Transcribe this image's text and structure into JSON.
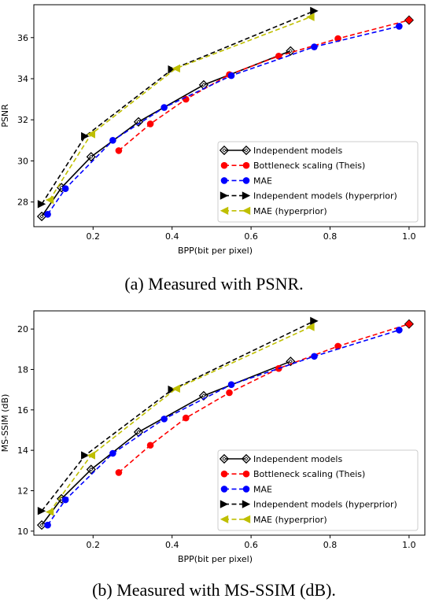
{
  "chart_data": [
    {
      "type": "line",
      "xlabel": "BPP(bit per pixel)",
      "ylabel": "PSNR",
      "xlim": [
        0.05,
        1.04
      ],
      "ylim": [
        26.8,
        37.6
      ],
      "xticks": [
        0.2,
        0.4,
        0.6,
        0.8,
        1.0
      ],
      "xtick_labels": [
        "0.2",
        "0.4",
        "0.6",
        "0.8",
        "1.0"
      ],
      "yticks": [
        28,
        30,
        32,
        34,
        36
      ],
      "ytick_labels": [
        "28",
        "30",
        "32",
        "34",
        "36"
      ],
      "grid": false,
      "legend_position": "lower-right",
      "caption": "(a) Measured with PSNR.",
      "series": [
        {
          "name": "Independent models",
          "color": "#000000",
          "dash": "solid",
          "marker": "diamond",
          "x": [
            0.07,
            0.12,
            0.195,
            0.315,
            0.48,
            0.7
          ],
          "y": [
            27.3,
            28.7,
            30.2,
            31.9,
            33.7,
            35.35
          ]
        },
        {
          "name": "Bottleneck scaling (Theis)",
          "color": "#ff0000",
          "dash": "dashed",
          "marker": "circle",
          "x": [
            0.265,
            0.345,
            0.435,
            0.545,
            0.67,
            0.82,
            1.0
          ],
          "y": [
            30.5,
            31.8,
            33.0,
            34.2,
            35.1,
            35.95,
            36.85
          ]
        },
        {
          "name": "MAE",
          "color": "#0000ff",
          "dash": "dashed",
          "marker": "circle",
          "x": [
            0.085,
            0.13,
            0.25,
            0.38,
            0.55,
            0.76,
            0.975
          ],
          "y": [
            27.4,
            28.65,
            31.0,
            32.6,
            34.15,
            35.55,
            36.55
          ]
        },
        {
          "name": "Independent models (hyperprior)",
          "color": "#000000",
          "dash": "dashed",
          "marker": "triangle-right",
          "x": [
            0.07,
            0.18,
            0.4,
            0.76
          ],
          "y": [
            27.9,
            31.2,
            34.45,
            37.3
          ]
        },
        {
          "name": "MAE (hyperprior)",
          "color": "#bfbf00",
          "dash": "dashed",
          "marker": "triangle-left",
          "x": [
            0.09,
            0.195,
            0.41,
            0.75
          ],
          "y": [
            28.1,
            31.3,
            34.5,
            37.0
          ]
        }
      ]
    },
    {
      "type": "line",
      "xlabel": "BPP(bit per pixel)",
      "ylabel": "MS-SSIM (dB)",
      "xlim": [
        0.05,
        1.04
      ],
      "ylim": [
        9.8,
        20.9
      ],
      "xticks": [
        0.2,
        0.4,
        0.6,
        0.8,
        1.0
      ],
      "xtick_labels": [
        "0.2",
        "0.4",
        "0.6",
        "0.8",
        "1.0"
      ],
      "yticks": [
        10,
        12,
        14,
        16,
        18,
        20
      ],
      "ytick_labels": [
        "10",
        "12",
        "14",
        "16",
        "18",
        "20"
      ],
      "grid": false,
      "legend_position": "lower-right",
      "caption": "(b) Measured with MS-SSIM (dB).",
      "series": [
        {
          "name": "Independent models",
          "color": "#000000",
          "dash": "solid",
          "marker": "diamond",
          "x": [
            0.07,
            0.12,
            0.195,
            0.315,
            0.48,
            0.7
          ],
          "y": [
            10.3,
            11.6,
            13.05,
            14.9,
            16.7,
            18.4
          ]
        },
        {
          "name": "Bottleneck scaling (Theis)",
          "color": "#ff0000",
          "dash": "dashed",
          "marker": "circle",
          "x": [
            0.265,
            0.345,
            0.435,
            0.545,
            0.67,
            0.82,
            1.0
          ],
          "y": [
            12.9,
            14.25,
            15.6,
            16.85,
            18.05,
            19.15,
            20.25
          ]
        },
        {
          "name": "MAE",
          "color": "#0000ff",
          "dash": "dashed",
          "marker": "circle",
          "x": [
            0.085,
            0.13,
            0.25,
            0.38,
            0.55,
            0.76,
            0.975
          ],
          "y": [
            10.3,
            11.55,
            13.85,
            15.55,
            17.25,
            18.65,
            19.95
          ]
        },
        {
          "name": "Independent models (hyperprior)",
          "color": "#000000",
          "dash": "dashed",
          "marker": "triangle-right",
          "x": [
            0.07,
            0.18,
            0.4,
            0.76
          ],
          "y": [
            11.0,
            13.75,
            17.0,
            20.4
          ]
        },
        {
          "name": "MAE (hyperprior)",
          "color": "#bfbf00",
          "dash": "dashed",
          "marker": "triangle-left",
          "x": [
            0.09,
            0.195,
            0.41,
            0.75
          ],
          "y": [
            10.95,
            13.75,
            17.05,
            20.1
          ]
        }
      ]
    }
  ]
}
